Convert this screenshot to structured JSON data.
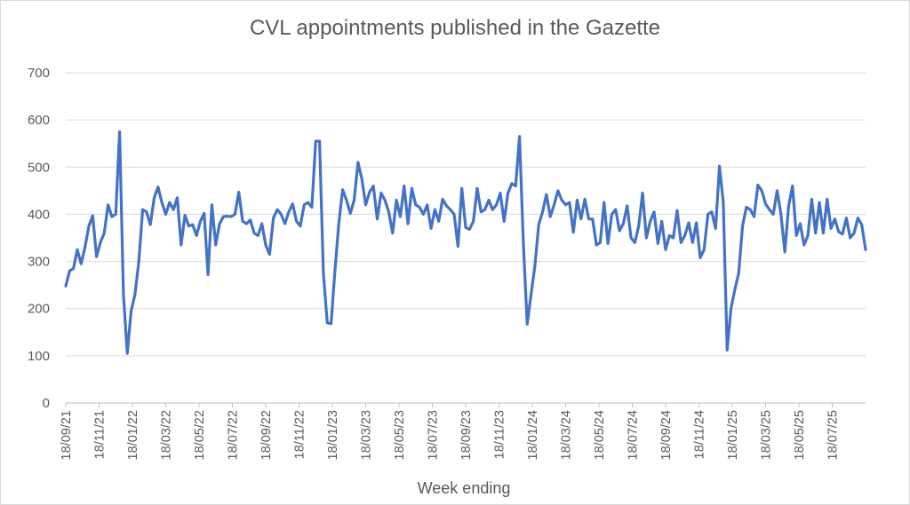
{
  "chart_data": {
    "type": "line",
    "title": "CVL appointments published in the Gazette",
    "xlabel": "Week ending",
    "ylabel": "",
    "ylim": [
      0,
      700
    ],
    "yticks": [
      0,
      100,
      200,
      300,
      400,
      500,
      600,
      700
    ],
    "x_tick_labels": [
      "18/09/21",
      "18/11/21",
      "18/01/22",
      "18/03/22",
      "18/05/22",
      "18/07/22",
      "18/09/22",
      "18/11/22",
      "18/01/23",
      "18/03/23",
      "18/05/23",
      "18/07/23",
      "18/09/23",
      "18/11/23",
      "18/01/24",
      "18/03/24",
      "18/05/24",
      "18/07/24",
      "18/09/24",
      "18/11/24",
      "18/01/25",
      "18/03/25",
      "18/05/25",
      "18/07/25"
    ],
    "grid": true,
    "legend": "none",
    "line_color": "#4472C4",
    "series": [
      {
        "values": [
          248,
          280,
          285,
          325,
          295,
          330,
          375,
          397,
          310,
          340,
          360,
          420,
          395,
          400,
          575,
          230,
          105,
          195,
          230,
          300,
          410,
          405,
          378,
          435,
          458,
          425,
          400,
          425,
          410,
          435,
          335,
          398,
          375,
          378,
          355,
          385,
          402,
          272,
          420,
          335,
          380,
          395,
          396,
          395,
          400,
          447,
          385,
          380,
          388,
          360,
          355,
          380,
          335,
          315,
          392,
          410,
          400,
          380,
          405,
          422,
          385,
          375,
          420,
          425,
          415,
          555,
          555,
          275,
          170,
          168,
          280,
          380,
          452,
          430,
          402,
          430,
          510,
          475,
          420,
          447,
          460,
          390,
          445,
          430,
          405,
          360,
          430,
          395,
          460,
          380,
          455,
          420,
          415,
          400,
          420,
          370,
          410,
          385,
          432,
          418,
          410,
          400,
          332,
          455,
          372,
          368,
          385,
          455,
          405,
          410,
          430,
          410,
          420,
          445,
          385,
          445,
          465,
          460,
          565,
          340,
          167,
          230,
          290,
          378,
          405,
          442,
          395,
          420,
          450,
          430,
          420,
          425,
          362,
          430,
          390,
          432,
          390,
          390,
          335,
          340,
          425,
          338,
          400,
          410,
          365,
          380,
          418,
          350,
          340,
          375,
          445,
          350,
          385,
          405,
          338,
          385,
          325,
          355,
          350,
          408,
          340,
          355,
          382,
          340,
          382,
          308,
          325,
          400,
          405,
          370,
          502,
          425,
          112,
          200,
          240,
          275,
          375,
          415,
          410,
          395,
          462,
          450,
          422,
          410,
          400,
          450,
          400,
          320,
          418,
          460,
          355,
          380,
          335,
          355,
          432,
          360,
          425,
          360,
          432,
          370,
          390,
          363,
          358,
          392,
          350,
          360,
          392,
          378,
          325
        ]
      }
    ]
  }
}
